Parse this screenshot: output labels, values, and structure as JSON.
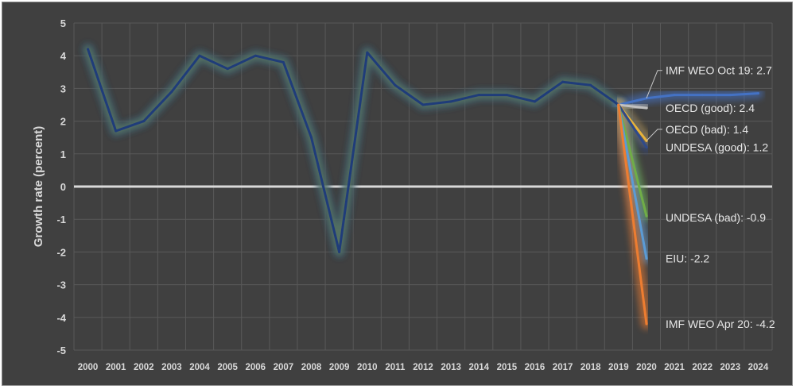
{
  "chart_data": {
    "type": "line",
    "title": "",
    "xlabel": "",
    "ylabel": "Growth rate (percent)",
    "ylim": [
      -5,
      5
    ],
    "yticks": [
      -5,
      -4,
      -3,
      -2,
      -1,
      0,
      1,
      2,
      3,
      4,
      5
    ],
    "categories": [
      "2000",
      "2001",
      "2002",
      "2003",
      "2004",
      "2005",
      "2006",
      "2007",
      "2008",
      "2009",
      "2010",
      "2011",
      "2012",
      "2013",
      "2014",
      "2015",
      "2016",
      "2017",
      "2018",
      "2019",
      "2020",
      "2021",
      "2022",
      "2023",
      "2024"
    ],
    "grid": true,
    "series": [
      {
        "color": "#1f3c7a",
        "x": [
          "2000",
          "2001",
          "2002",
          "2003",
          "2004",
          "2005",
          "2006",
          "2007",
          "2008",
          "2009",
          "2010",
          "2011",
          "2012",
          "2013",
          "2014",
          "2015",
          "2016",
          "2017",
          "2018",
          "2019"
        ],
        "values": [
          4.2,
          1.7,
          2.0,
          2.9,
          4.0,
          3.6,
          4.0,
          3.8,
          1.5,
          -2.0,
          4.1,
          3.1,
          2.5,
          2.6,
          2.8,
          2.8,
          2.6,
          3.2,
          3.1,
          2.5
        ]
      },
      {
        "color": "#4472c4",
        "x": [
          "2019",
          "2020",
          "2021",
          "2022",
          "2023",
          "2024"
        ],
        "values": [
          2.5,
          2.7,
          2.8,
          2.8,
          2.8,
          2.85
        ]
      },
      {
        "color": "#c0c0c0",
        "x": [
          "2019",
          "2020"
        ],
        "values": [
          2.5,
          2.4
        ]
      },
      {
        "color": "#e8b33a",
        "x": [
          "2019",
          "2020"
        ],
        "values": [
          2.5,
          1.4
        ]
      },
      {
        "color": "#2f4a8a",
        "x": [
          "2019",
          "2020"
        ],
        "values": [
          2.5,
          1.2
        ]
      },
      {
        "color": "#70ad47",
        "x": [
          "2019",
          "2020"
        ],
        "values": [
          2.5,
          -0.9
        ]
      },
      {
        "color": "#5b9bd5",
        "x": [
          "2019",
          "2020"
        ],
        "values": [
          2.5,
          -2.2
        ]
      },
      {
        "color": "#ed7d31",
        "x": [
          "2019",
          "2020"
        ],
        "values": [
          2.5,
          -4.2
        ]
      }
    ],
    "annotations": [
      {
        "text": "IMF WEO Oct 19: 2.7",
        "x": "2020",
        "y": 2.7,
        "anchor_y": 3.55
      },
      {
        "text": "OECD (good): 2.4",
        "x": "2020",
        "y": 2.4,
        "anchor_y": 2.4
      },
      {
        "text": "OECD (bad): 1.4",
        "x": "2020",
        "y": 1.4,
        "anchor_y": 1.75
      },
      {
        "text": "UNDESA (good): 1.2",
        "x": "2020",
        "y": 1.2,
        "anchor_y": 1.2
      },
      {
        "text": "UNDESA (bad): -0.9",
        "x": "2020",
        "y": -0.9,
        "anchor_y": -0.95
      },
      {
        "text": "EIU: -2.2",
        "x": "2020",
        "y": -2.2,
        "anchor_y": -2.2
      },
      {
        "text": "IMF WEO Apr 20: -4.2",
        "x": "2020",
        "y": -4.2,
        "anchor_y": -4.2
      }
    ],
    "colors": {
      "background": "#404040",
      "gridline": "#595959",
      "zero_line": "#d9d9d9",
      "glow": "#7a9a58"
    }
  }
}
